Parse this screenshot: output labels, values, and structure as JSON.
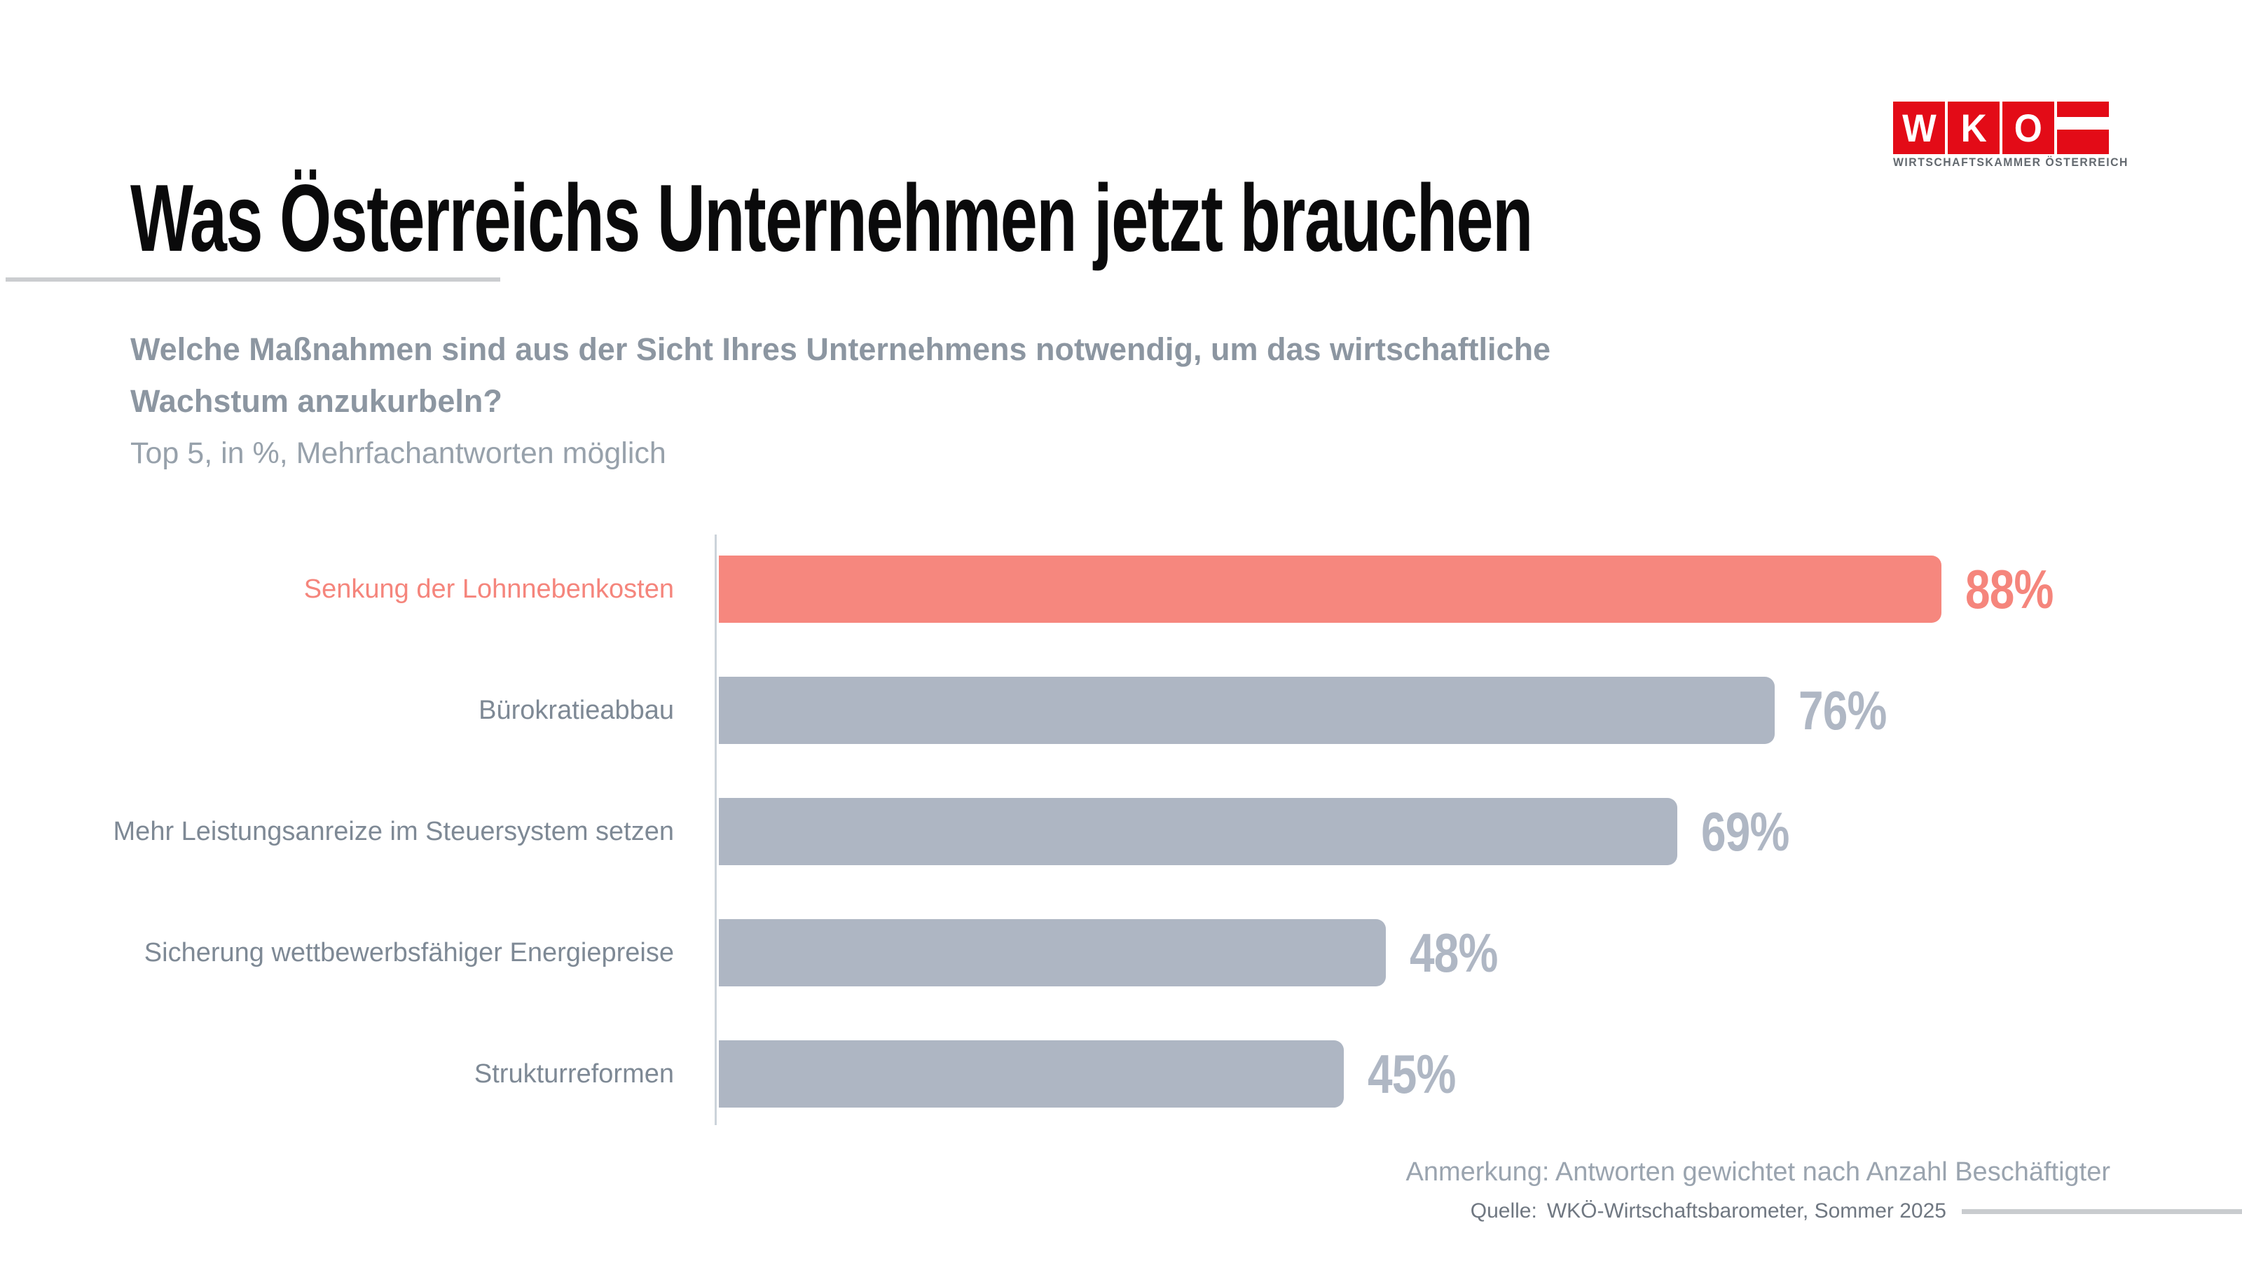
{
  "header": {
    "title": "Was Österreichs Unternehmen jetzt brauchen",
    "logo": {
      "letters": [
        "W",
        "K",
        "O"
      ],
      "caption": "WIRTSCHAFTSKAMMER ÖSTERREICH",
      "brand_red": "#E30B17"
    }
  },
  "subtitle": {
    "question_lines": [
      "Welche Maßnahmen sind aus der Sicht Ihres Unternehmens notwendig, um das wirtschaftliche",
      "Wachstum anzukurbeln?"
    ],
    "note": "Top 5, in %, Mehrfachantworten möglich"
  },
  "chart_data": {
    "type": "bar",
    "orientation": "horizontal",
    "title": "Was Österreichs Unternehmen jetzt brauchen",
    "subtitle": "Welche Maßnahmen sind aus der Sicht Ihres Unternehmens notwendig, um das wirtschaftliche Wachstum anzukurbeln?",
    "note": "Top 5, in %, Mehrfachantworten möglich",
    "unit": "%",
    "xlim": [
      0,
      100
    ],
    "grid": false,
    "legend": false,
    "categories": [
      "Senkung der Lohnnebenkosten",
      "Bürokratieabbau",
      "Mehr Leistungsanreize im Steuersystem setzen",
      "Sicherung wettbewerbsfähiger Energiepreise",
      "Strukturreformen"
    ],
    "values": [
      88,
      76,
      69,
      48,
      45
    ],
    "value_labels": [
      "88%",
      "76%",
      "69%",
      "48%",
      "45%"
    ],
    "highlight_index": 0,
    "colors": {
      "highlight_bar": "#F6877E",
      "default_bar": "#AEB6C3",
      "highlight_text": "#F5857C",
      "default_value_text": "#AFB7C4",
      "default_label_text": "#7E8995",
      "axis": "#CCD3DA"
    }
  },
  "footer": {
    "annotation": "Anmerkung: Antworten gewichtet nach Anzahl Beschäftigter",
    "source_label": "Quelle:",
    "source_text": "WKÖ-Wirtschaftsbarometer, Sommer 2025"
  }
}
